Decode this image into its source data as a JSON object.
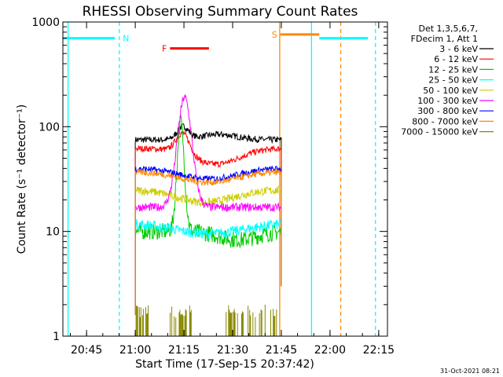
{
  "chart_data": {
    "type": "line",
    "title": "RHESSI Observing Summary Count Rates",
    "xlabel": "Start Time (17-Sep-15 20:37:42)",
    "ylabel": "Count Rate (s⁻¹ detector⁻¹)",
    "yscale": "log",
    "ylim": [
      1,
      1000
    ],
    "xlim_minutes": [
      0,
      100
    ],
    "x_tick_labels": [
      "20:45",
      "21:00",
      "21:15",
      "21:30",
      "21:45",
      "22:00",
      "22:15"
    ],
    "x_tick_minutes": [
      7.3,
      22.3,
      37.3,
      52.3,
      67.3,
      82.3,
      97.3
    ],
    "y_tick_labels": [
      "1",
      "10",
      "100",
      "1000"
    ],
    "y_tick_values": [
      1,
      10,
      100,
      1000
    ],
    "legend_header": [
      "Det 1,3,5,6,7,",
      "FDecim 1, Att 1"
    ],
    "legend_position": "right",
    "series": [
      {
        "name": "3 - 6 keV",
        "color": "#000000",
        "base": 75,
        "noise": 0.03,
        "bumps": [
          [
            37,
            2.5,
            0.12
          ],
          [
            48,
            8,
            0.05
          ]
        ]
      },
      {
        "name": "6 - 12 keV",
        "color": "#ff0000",
        "base": 62,
        "noise": 0.03,
        "bumps": [
          [
            37,
            3,
            0.2
          ],
          [
            47,
            10,
            -0.15
          ]
        ]
      },
      {
        "name": "12 - 25 keV",
        "color": "#00cc00",
        "base": 10,
        "noise": 0.08,
        "bumps": [
          [
            36.3,
            1.6,
            1.05
          ],
          [
            54,
            8,
            -0.08
          ]
        ]
      },
      {
        "name": "25 - 50 keV",
        "color": "#00ffff",
        "base": 12,
        "noise": 0.05,
        "bumps": [
          [
            45,
            15,
            -0.1
          ]
        ]
      },
      {
        "name": "50 - 100 keV",
        "color": "#cccc00",
        "base": 25,
        "noise": 0.04,
        "bumps": [
          [
            44,
            12,
            -0.12
          ]
        ]
      },
      {
        "name": "100 - 300 keV",
        "color": "#ff00ff",
        "base": 17,
        "noise": 0.04,
        "bumps": [
          [
            37.5,
            3.2,
            1.05
          ]
        ]
      },
      {
        "name": "300 - 800 keV",
        "color": "#0000ff",
        "base": 40,
        "noise": 0.03,
        "bumps": [
          [
            45,
            12,
            -0.1
          ]
        ]
      },
      {
        "name": "800 - 7000 keV",
        "color": "#ff8800",
        "base": 37,
        "noise": 0.03,
        "bumps": [
          [
            45,
            12,
            -0.1
          ]
        ]
      },
      {
        "name": "7000 - 15000 keV",
        "color": "#888800",
        "base": 1.5,
        "noise": 0.0,
        "bumps": []
      }
    ],
    "data_interval_minutes": [
      22.3,
      67.3
    ],
    "flags": [
      {
        "label": "N",
        "color": "#00ffff",
        "segments": [
          [
            0,
            16
          ],
          [
            79,
            94
          ]
        ],
        "level": 700
      },
      {
        "label": "F",
        "color": "#ff0000",
        "segments": [
          [
            33,
            45
          ]
        ],
        "level": 560
      },
      {
        "label": "S",
        "color": "#ff8800",
        "segments": [
          [
            67,
            79
          ]
        ],
        "level": 760
      }
    ],
    "vlines": [
      {
        "color": "#00ffff",
        "minute": 1.6,
        "dashed": false
      },
      {
        "color": "#00ffff",
        "minute": 17.4,
        "dashed": true
      },
      {
        "color": "#ff8800",
        "minute": 66.8,
        "dashed": false
      },
      {
        "color": "#00ffff",
        "minute": 76.6,
        "dashed": false
      },
      {
        "color": "#ff8800",
        "minute": 85.6,
        "dashed": true
      },
      {
        "color": "#00ffff",
        "minute": 96.3,
        "dashed": true
      }
    ],
    "footer_date": "31-Oct-2021 08:21"
  }
}
